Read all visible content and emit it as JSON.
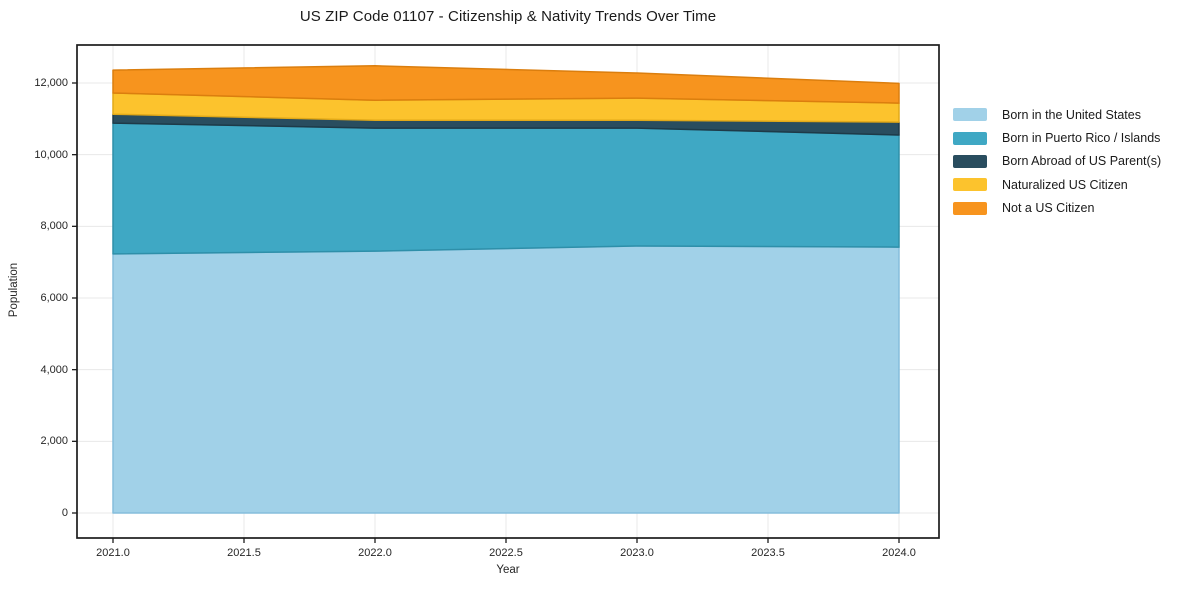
{
  "figure": {
    "title": "US ZIP Code 01107 - Citizenship & Nativity Trends Over Time"
  },
  "chart_data": {
    "type": "area",
    "stacked": true,
    "title": "US ZIP Code 01107 - Citizenship & Nativity Trends Over Time",
    "xlabel": "Year",
    "ylabel": "Population",
    "x": [
      2021,
      2022,
      2023,
      2024
    ],
    "series": [
      {
        "name": "Born in the United States",
        "color": "#A1D1E8",
        "edge_color": "#85BEDC",
        "values": [
          7230,
          7310,
          7450,
          7420
        ]
      },
      {
        "name": "Born in Puerto Rico / Islands",
        "color": "#3FA8C4",
        "edge_color": "#2E8FA9",
        "values": [
          3650,
          3430,
          3290,
          3130
        ]
      },
      {
        "name": "Born Abroad of US Parent(s)",
        "color": "#294D5F",
        "edge_color": "#1E3A48",
        "values": [
          250,
          220,
          220,
          360
        ]
      },
      {
        "name": "Naturalized US Citizen",
        "color": "#FCC32D",
        "edge_color": "#E2A918",
        "values": [
          590,
          560,
          620,
          530
        ]
      },
      {
        "name": "Not a US Citizen",
        "color": "#F7941E",
        "edge_color": "#DB7E0E",
        "values": [
          640,
          960,
          700,
          550
        ]
      }
    ],
    "totals": [
      12360,
      12480,
      12280,
      11990
    ],
    "x_ticks": {
      "values": [
        2021.0,
        2021.5,
        2022.0,
        2022.5,
        2023.0,
        2023.5,
        2024.0
      ],
      "labels": [
        "2021.0",
        "2021.5",
        "2022.0",
        "2022.5",
        "2023.0",
        "2023.5",
        "2024.0"
      ]
    },
    "y_ticks": {
      "values": [
        0,
        2000,
        4000,
        6000,
        8000,
        10000,
        12000
      ],
      "labels": [
        "0",
        "2,000",
        "4,000",
        "6,000",
        "8,000",
        "10,000",
        "12,000"
      ]
    },
    "xlim": [
      2020.86,
      2024.15
    ],
    "ylim": [
      -700,
      13100
    ],
    "grid": true,
    "legend_position": "right-outside",
    "grid_color": "#e8e8e8",
    "frame_color": "#1c1c1c"
  }
}
